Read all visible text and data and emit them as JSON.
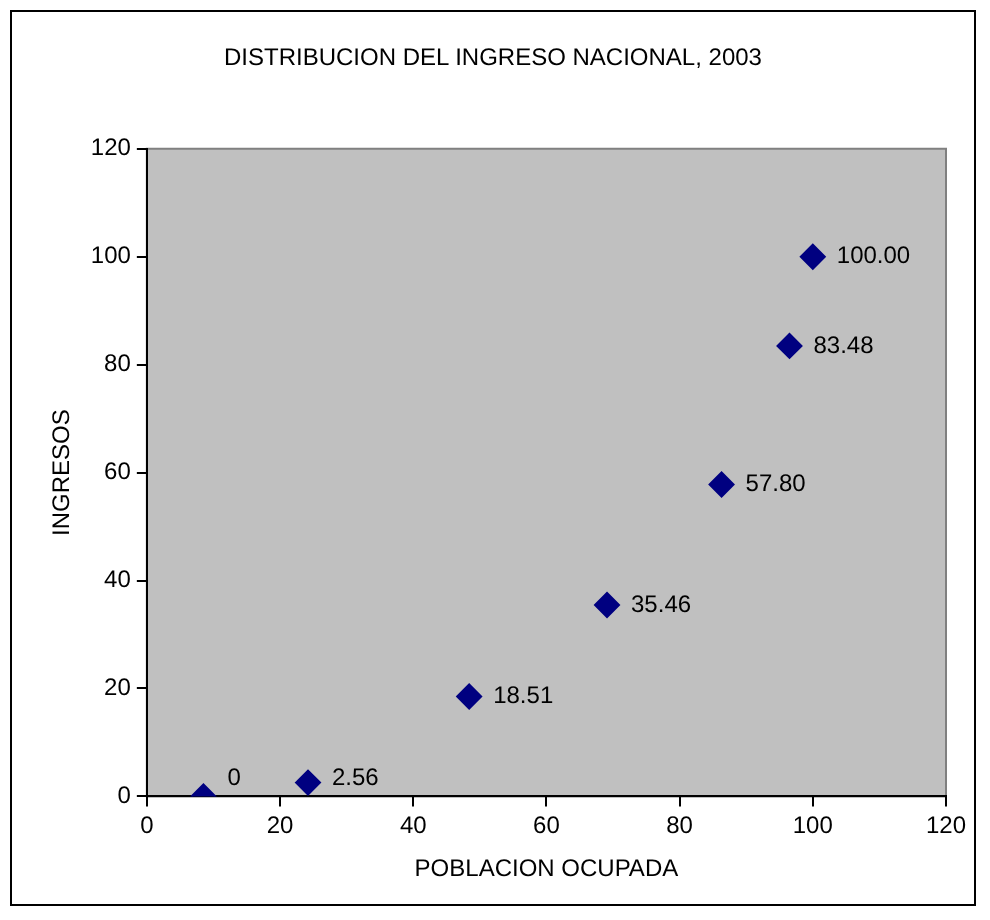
{
  "chart_data": {
    "type": "scatter",
    "title": "DISTRIBUCION DEL INGRESO NACIONAL, 2003",
    "xlabel": "POBLACION OCUPADA",
    "ylabel": "INGRESOS",
    "series": [
      {
        "color": "#000080",
        "x": [
          8.5,
          24.2,
          48.4,
          69.1,
          86.3,
          96.5,
          100
        ],
        "values": [
          0,
          2.56,
          18.51,
          35.46,
          57.8,
          83.48,
          100
        ],
        "value_labels": [
          "0",
          "2.56",
          "18.51",
          "35.46",
          "57.80",
          "83.48",
          "100.00"
        ]
      }
    ],
    "xlim": [
      0,
      120
    ],
    "xticks": [
      0,
      20,
      40,
      60,
      80,
      100,
      120
    ],
    "ylim": [
      0,
      120
    ],
    "yticks": [
      0,
      20,
      40,
      60,
      80,
      100,
      120
    ],
    "marker": "diamond",
    "grid": false,
    "legend": false
  }
}
